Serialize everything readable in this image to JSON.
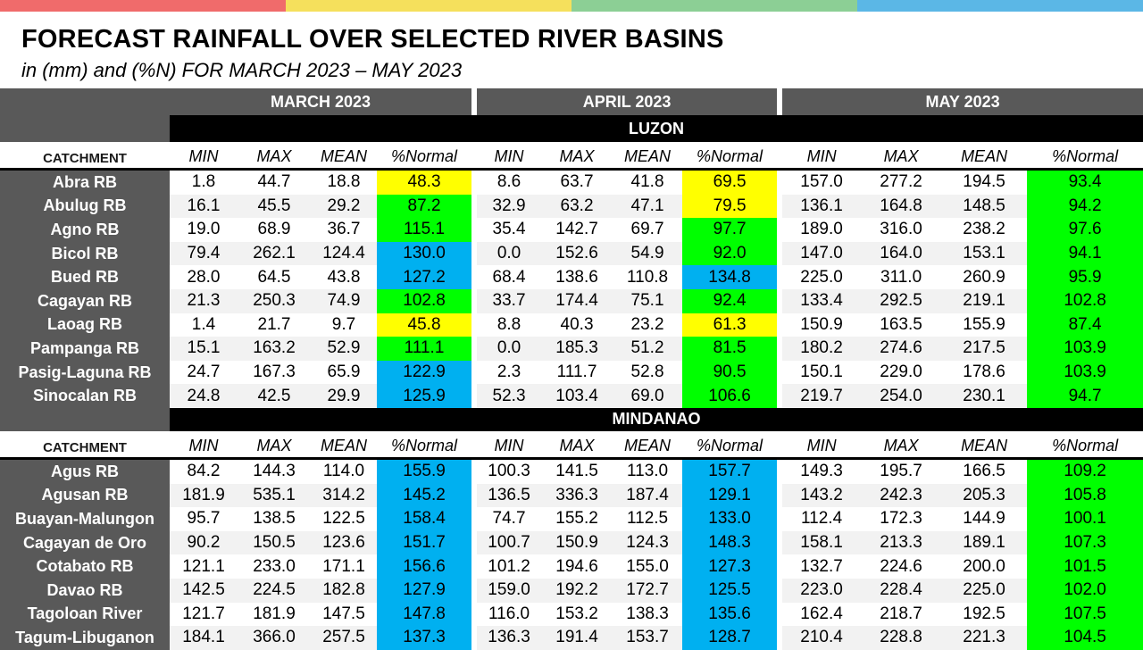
{
  "top_bar_colors": [
    "#f06b6b",
    "#f5e05c",
    "#8ccf95",
    "#5bb7e6"
  ],
  "title": "FORECAST RAINFALL OVER SELECTED RIVER BASINS",
  "subtitle": "in (mm) and (%N) FOR  MARCH 2023 – MAY 2023",
  "months": [
    "MARCH 2023",
    "APRIL 2023",
    "MAY 2023"
  ],
  "catchment_label": "CATCHMENT",
  "columns": [
    "MIN",
    "MAX",
    "MEAN",
    "%Normal"
  ],
  "legend_colors": {
    "yellow": "#ffff00",
    "green": "#00ff00",
    "blue": "#00b0f0"
  },
  "regions": [
    {
      "name": "LUZON",
      "rows": [
        {
          "name": "Abra RB",
          "vals": [
            [
              "1.8",
              "44.7",
              "18.8",
              "48.3"
            ],
            [
              "8.6",
              "63.7",
              "41.8",
              "69.5"
            ],
            [
              "157.0",
              "277.2",
              "194.5",
              "93.4"
            ]
          ],
          "cls": [
            "yel",
            "yel",
            "grn"
          ]
        },
        {
          "name": "Abulug RB",
          "vals": [
            [
              "16.1",
              "45.5",
              "29.2",
              "87.2"
            ],
            [
              "32.9",
              "63.2",
              "47.1",
              "79.5"
            ],
            [
              "136.1",
              "164.8",
              "148.5",
              "94.2"
            ]
          ],
          "cls": [
            "grn",
            "yel",
            "grn"
          ]
        },
        {
          "name": "Agno RB",
          "vals": [
            [
              "19.0",
              "68.9",
              "36.7",
              "115.1"
            ],
            [
              "35.4",
              "142.7",
              "69.7",
              "97.7"
            ],
            [
              "189.0",
              "316.0",
              "238.2",
              "97.6"
            ]
          ],
          "cls": [
            "grn",
            "grn",
            "grn"
          ]
        },
        {
          "name": "Bicol RB",
          "vals": [
            [
              "79.4",
              "262.1",
              "124.4",
              "130.0"
            ],
            [
              "0.0",
              "152.6",
              "54.9",
              "92.0"
            ],
            [
              "147.0",
              "164.0",
              "153.1",
              "94.1"
            ]
          ],
          "cls": [
            "blu",
            "grn",
            "grn"
          ]
        },
        {
          "name": "Bued RB",
          "vals": [
            [
              "28.0",
              "64.5",
              "43.8",
              "127.2"
            ],
            [
              "68.4",
              "138.6",
              "110.8",
              "134.8"
            ],
            [
              "225.0",
              "311.0",
              "260.9",
              "95.9"
            ]
          ],
          "cls": [
            "blu",
            "blu",
            "grn"
          ]
        },
        {
          "name": "Cagayan RB",
          "vals": [
            [
              "21.3",
              "250.3",
              "74.9",
              "102.8"
            ],
            [
              "33.7",
              "174.4",
              "75.1",
              "92.4"
            ],
            [
              "133.4",
              "292.5",
              "219.1",
              "102.8"
            ]
          ],
          "cls": [
            "grn",
            "grn",
            "grn"
          ]
        },
        {
          "name": "Laoag RB",
          "vals": [
            [
              "1.4",
              "21.7",
              "9.7",
              "45.8"
            ],
            [
              "8.8",
              "40.3",
              "23.2",
              "61.3"
            ],
            [
              "150.9",
              "163.5",
              "155.9",
              "87.4"
            ]
          ],
          "cls": [
            "yel",
            "yel",
            "grn"
          ]
        },
        {
          "name": "Pampanga RB",
          "vals": [
            [
              "15.1",
              "163.2",
              "52.9",
              "111.1"
            ],
            [
              "0.0",
              "185.3",
              "51.2",
              "81.5"
            ],
            [
              "180.2",
              "274.6",
              "217.5",
              "103.9"
            ]
          ],
          "cls": [
            "grn",
            "grn",
            "grn"
          ]
        },
        {
          "name": "Pasig-Laguna RB",
          "vals": [
            [
              "24.7",
              "167.3",
              "65.9",
              "122.9"
            ],
            [
              "2.3",
              "111.7",
              "52.8",
              "90.5"
            ],
            [
              "150.1",
              "229.0",
              "178.6",
              "103.9"
            ]
          ],
          "cls": [
            "blu",
            "grn",
            "grn"
          ]
        },
        {
          "name": "Sinocalan RB",
          "vals": [
            [
              "24.8",
              "42.5",
              "29.9",
              "125.9"
            ],
            [
              "52.3",
              "103.4",
              "69.0",
              "106.6"
            ],
            [
              "219.7",
              "254.0",
              "230.1",
              "94.7"
            ]
          ],
          "cls": [
            "blu",
            "grn",
            "grn"
          ]
        }
      ]
    },
    {
      "name": "MINDANAO",
      "rows": [
        {
          "name": "Agus RB",
          "vals": [
            [
              "84.2",
              "144.3",
              "114.0",
              "155.9"
            ],
            [
              "100.3",
              "141.5",
              "113.0",
              "157.7"
            ],
            [
              "149.3",
              "195.7",
              "166.5",
              "109.2"
            ]
          ],
          "cls": [
            "blu",
            "blu",
            "grn"
          ]
        },
        {
          "name": "Agusan RB",
          "vals": [
            [
              "181.9",
              "535.1",
              "314.2",
              "145.2"
            ],
            [
              "136.5",
              "336.3",
              "187.4",
              "129.1"
            ],
            [
              "143.2",
              "242.3",
              "205.3",
              "105.8"
            ]
          ],
          "cls": [
            "blu",
            "blu",
            "grn"
          ]
        },
        {
          "name": "Buayan-Malungon",
          "vals": [
            [
              "95.7",
              "138.5",
              "122.5",
              "158.4"
            ],
            [
              "74.7",
              "155.2",
              "112.5",
              "133.0"
            ],
            [
              "112.4",
              "172.3",
              "144.9",
              "100.1"
            ]
          ],
          "cls": [
            "blu",
            "blu",
            "grn"
          ]
        },
        {
          "name": "Cagayan de Oro",
          "vals": [
            [
              "90.2",
              "150.5",
              "123.6",
              "151.7"
            ],
            [
              "100.7",
              "150.9",
              "124.3",
              "148.3"
            ],
            [
              "158.1",
              "213.3",
              "189.1",
              "107.3"
            ]
          ],
          "cls": [
            "blu",
            "blu",
            "grn"
          ]
        },
        {
          "name": "Cotabato RB",
          "vals": [
            [
              "121.1",
              "233.0",
              "171.1",
              "156.6"
            ],
            [
              "101.2",
              "194.6",
              "155.0",
              "127.3"
            ],
            [
              "132.7",
              "224.6",
              "200.0",
              "101.5"
            ]
          ],
          "cls": [
            "blu",
            "blu",
            "grn"
          ]
        },
        {
          "name": "Davao RB",
          "vals": [
            [
              "142.5",
              "224.5",
              "182.8",
              "127.9"
            ],
            [
              "159.0",
              "192.2",
              "172.7",
              "125.5"
            ],
            [
              "223.0",
              "228.4",
              "225.0",
              "102.0"
            ]
          ],
          "cls": [
            "blu",
            "blu",
            "grn"
          ]
        },
        {
          "name": "Tagoloan River",
          "vals": [
            [
              "121.7",
              "181.9",
              "147.5",
              "147.8"
            ],
            [
              "116.0",
              "153.2",
              "138.3",
              "135.6"
            ],
            [
              "162.4",
              "218.7",
              "192.5",
              "107.5"
            ]
          ],
          "cls": [
            "blu",
            "blu",
            "grn"
          ]
        },
        {
          "name": "Tagum-Libuganon",
          "vals": [
            [
              "184.1",
              "366.0",
              "257.5",
              "137.3"
            ],
            [
              "136.3",
              "191.4",
              "153.7",
              "128.7"
            ],
            [
              "210.4",
              "228.8",
              "221.3",
              "104.5"
            ]
          ],
          "cls": [
            "blu",
            "blu",
            "grn"
          ]
        }
      ]
    }
  ]
}
